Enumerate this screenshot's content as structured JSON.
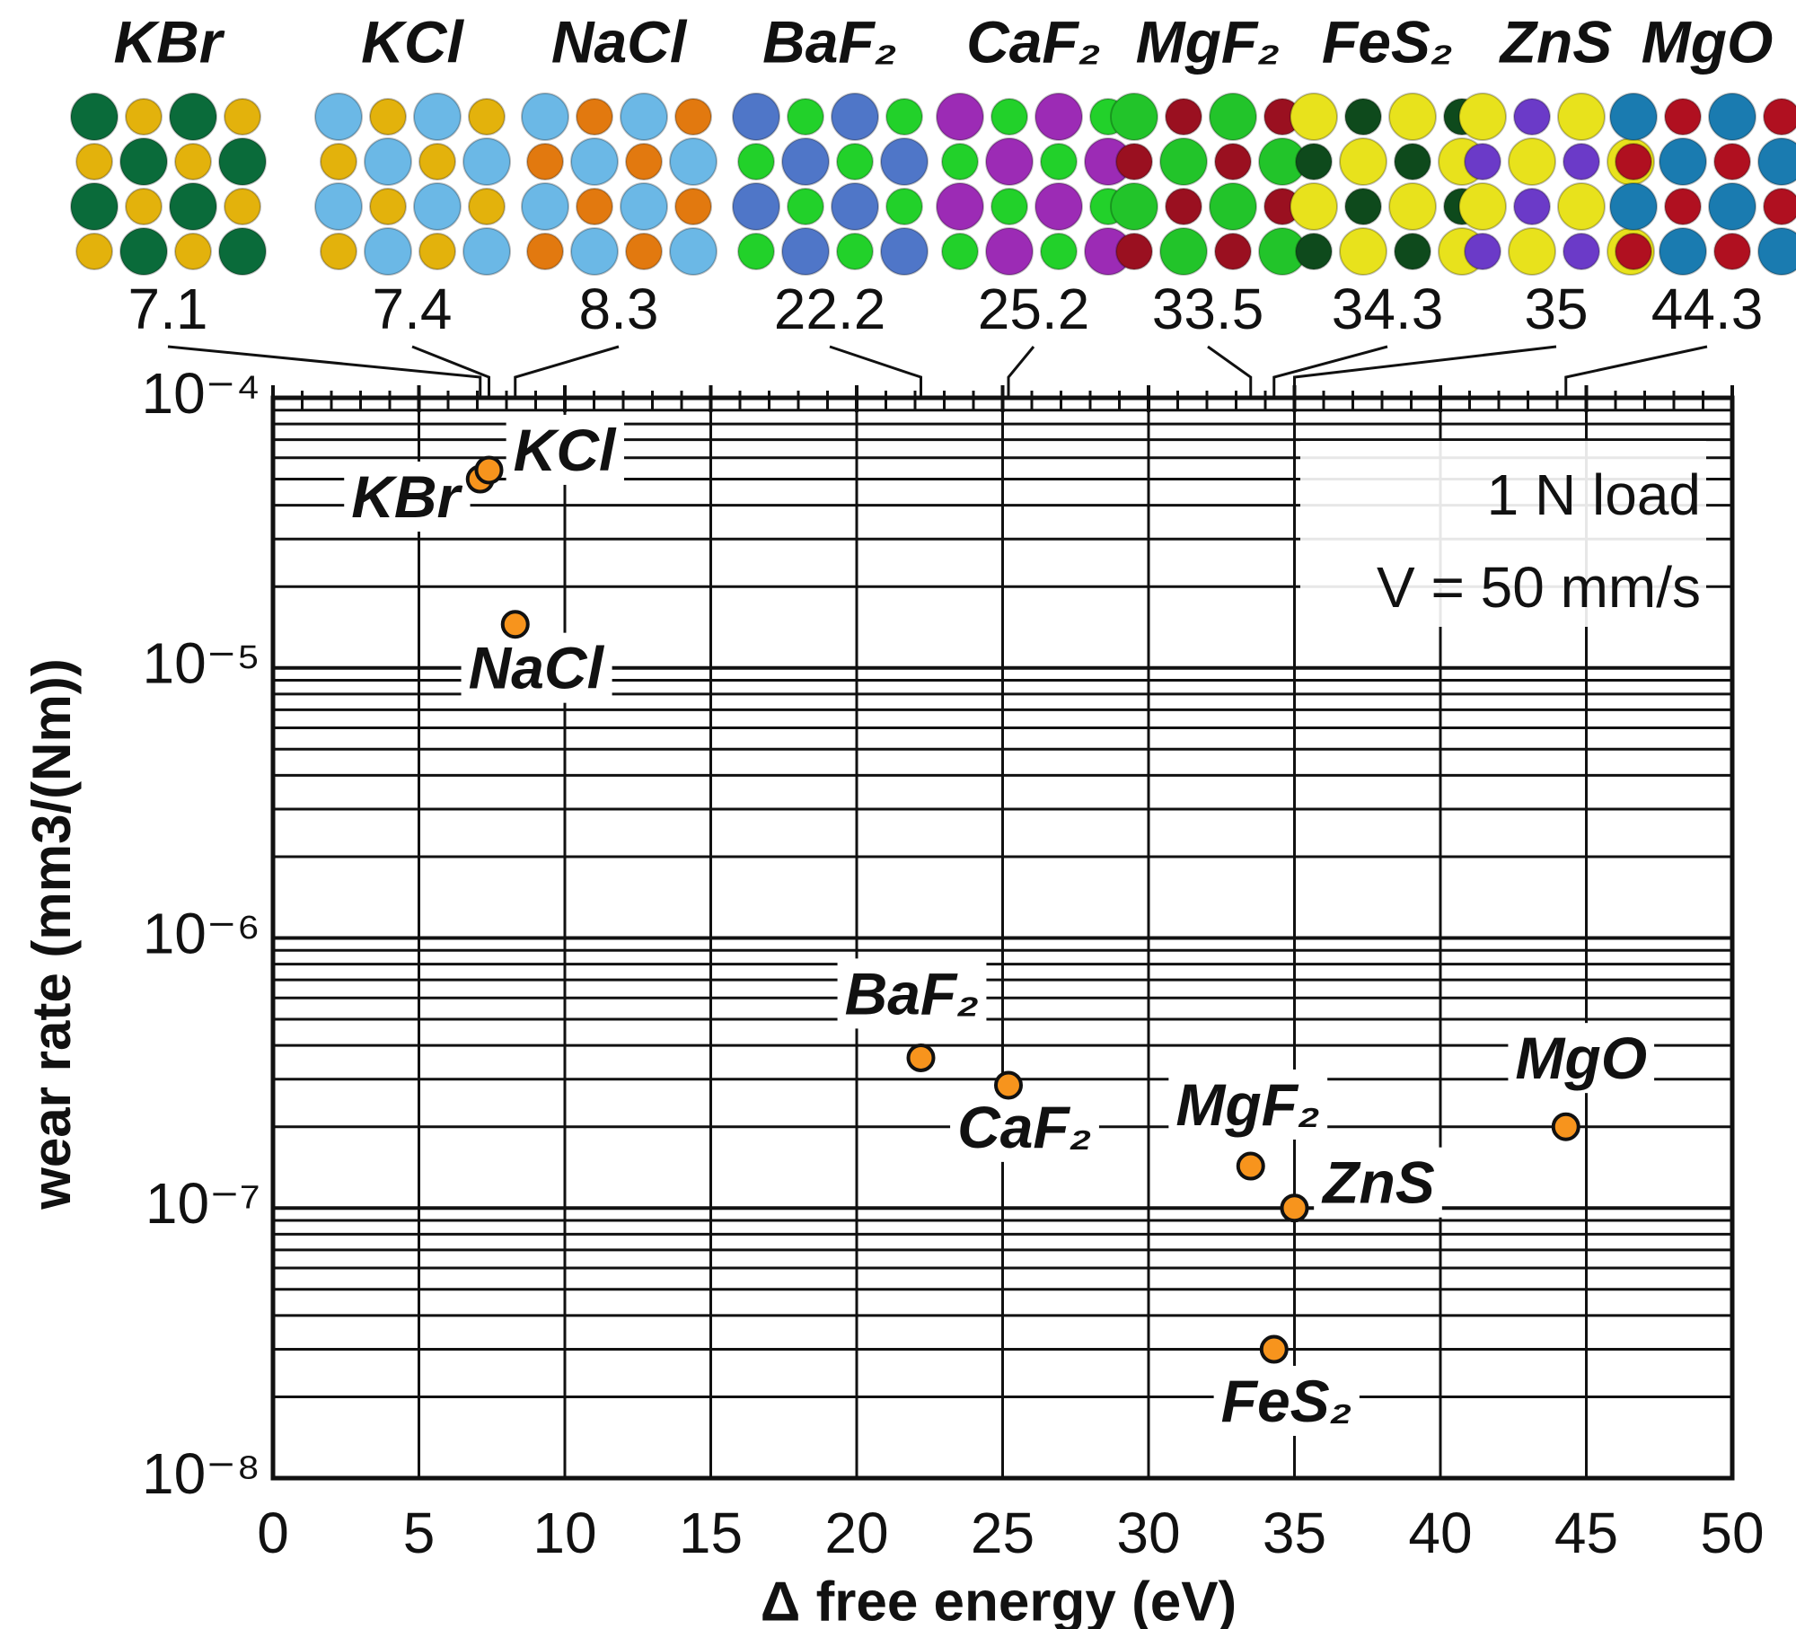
{
  "chart_data": {
    "type": "scatter",
    "xlabel": "Δ free energy (eV)",
    "ylabel": "wear rate (mm3/(Nm))",
    "labels": [
      "KBr",
      "KCl",
      "NaCl",
      "BaF₂",
      "CaF₂",
      "MgF₂",
      "FeS₂",
      "ZnS",
      "MgO"
    ],
    "x": [
      7.1,
      7.4,
      8.3,
      22.2,
      25.2,
      33.5,
      34.3,
      35,
      44.3
    ],
    "values": [
      5e-05,
      5.4e-05,
      1.45e-05,
      3.6e-07,
      2.85e-07,
      1.43e-07,
      3e-08,
      1e-07,
      2e-07
    ],
    "color": "#f7941d",
    "xlim": [
      0,
      50
    ],
    "xticks": [
      0,
      5,
      10,
      15,
      20,
      25,
      30,
      35,
      40,
      45,
      50
    ],
    "xminorticks": [
      1,
      2,
      3,
      4,
      6,
      7,
      8,
      9,
      11,
      12,
      13,
      14,
      16,
      17,
      18,
      19,
      21,
      22,
      23,
      24,
      26,
      27,
      28,
      29,
      31,
      32,
      33,
      34,
      36,
      37,
      38,
      39,
      41,
      42,
      43,
      44,
      46,
      47,
      48,
      49
    ],
    "ylim": [
      1e-08,
      0.0001
    ],
    "log_y": true,
    "yticks": [
      {
        "value": 1e-08,
        "label": "10⁻⁸"
      },
      {
        "value": 1e-07,
        "label": "10⁻⁷"
      },
      {
        "value": 1e-06,
        "label": "10⁻⁶"
      },
      {
        "value": 1e-05,
        "label": "10⁻⁵"
      },
      {
        "value": 0.0001,
        "label": "10⁻⁴"
      }
    ],
    "yminorticks": [
      2e-08,
      3e-08,
      4e-08,
      5e-08,
      6e-08,
      7e-08,
      8e-08,
      9e-08,
      2e-07,
      3e-07,
      4e-07,
      5e-07,
      6e-07,
      7e-07,
      8e-07,
      9e-07,
      2e-06,
      3e-06,
      4e-06,
      5e-06,
      6e-06,
      7e-06,
      8e-06,
      9e-06,
      2e-05,
      3e-05,
      4e-05,
      5e-05,
      6e-05,
      7e-05,
      8e-05,
      9e-05
    ],
    "grid": true,
    "annotations": [
      "1 N load",
      "V = 50 mm/s"
    ]
  }
}
